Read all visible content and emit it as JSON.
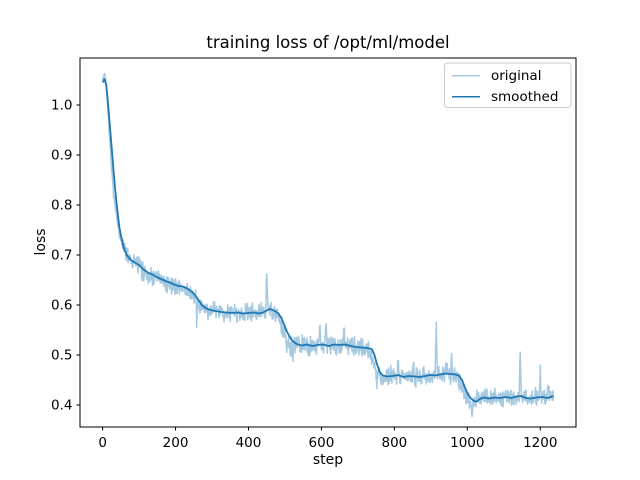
{
  "figure": {
    "title": "training loss of /opt/ml/model",
    "xlabel": "step",
    "ylabel": "loss",
    "background": "#ffffff"
  },
  "legend": {
    "items": [
      {
        "label": "original",
        "color": "#1f77b4",
        "opacity": 0.4
      },
      {
        "label": "smoothed",
        "color": "#1f77b4",
        "opacity": 1.0
      }
    ]
  },
  "axes": {
    "xlim": [
      -62,
      1298
    ],
    "ylim": [
      0.356,
      1.094
    ],
    "x_ticks": [
      0,
      200,
      400,
      600,
      800,
      1000,
      1200
    ],
    "y_ticks": [
      0.4,
      0.5,
      0.6,
      0.7,
      0.8,
      0.9,
      1.0
    ],
    "grid": false,
    "spine_color": "#000000"
  },
  "chart_data": {
    "type": "line",
    "title": "training loss of /opt/ml/model",
    "xlabel": "step",
    "ylabel": "loss",
    "x_range": [
      0,
      1236
    ],
    "legend_position": "upper right",
    "series": [
      {
        "name": "original",
        "color": "#1f77b4",
        "opacity": 0.4,
        "linewidth": 1.5
      },
      {
        "name": "smoothed",
        "color": "#1f77b4",
        "opacity": 1.0,
        "linewidth": 1.8
      }
    ],
    "smoothed_keypoints": [
      [
        0,
        1.045
      ],
      [
        5,
        1.052
      ],
      [
        10,
        1.04
      ],
      [
        14,
        1.01
      ],
      [
        18,
        0.975
      ],
      [
        22,
        0.94
      ],
      [
        26,
        0.905
      ],
      [
        30,
        0.868
      ],
      [
        34,
        0.835
      ],
      [
        38,
        0.805
      ],
      [
        42,
        0.78
      ],
      [
        46,
        0.755
      ],
      [
        52,
        0.733
      ],
      [
        58,
        0.715
      ],
      [
        66,
        0.7
      ],
      [
        76,
        0.691
      ],
      [
        88,
        0.685
      ],
      [
        100,
        0.68
      ],
      [
        112,
        0.671
      ],
      [
        124,
        0.665
      ],
      [
        136,
        0.661
      ],
      [
        148,
        0.656
      ],
      [
        160,
        0.652
      ],
      [
        172,
        0.648
      ],
      [
        184,
        0.645
      ],
      [
        196,
        0.641
      ],
      [
        208,
        0.638
      ],
      [
        220,
        0.637
      ],
      [
        232,
        0.633
      ],
      [
        242,
        0.628
      ],
      [
        252,
        0.621
      ],
      [
        262,
        0.611
      ],
      [
        272,
        0.6
      ],
      [
        282,
        0.594
      ],
      [
        295,
        0.59
      ],
      [
        310,
        0.588
      ],
      [
        325,
        0.586
      ],
      [
        340,
        0.585
      ],
      [
        355,
        0.584
      ],
      [
        370,
        0.585
      ],
      [
        385,
        0.583
      ],
      [
        400,
        0.584
      ],
      [
        415,
        0.585
      ],
      [
        428,
        0.583
      ],
      [
        440,
        0.585
      ],
      [
        450,
        0.589
      ],
      [
        458,
        0.592
      ],
      [
        466,
        0.59
      ],
      [
        474,
        0.587
      ],
      [
        482,
        0.583
      ],
      [
        490,
        0.574
      ],
      [
        498,
        0.56
      ],
      [
        506,
        0.546
      ],
      [
        514,
        0.535
      ],
      [
        522,
        0.527
      ],
      [
        532,
        0.522
      ],
      [
        545,
        0.519
      ],
      [
        560,
        0.521
      ],
      [
        575,
        0.518
      ],
      [
        590,
        0.52
      ],
      [
        605,
        0.521
      ],
      [
        620,
        0.518
      ],
      [
        635,
        0.521
      ],
      [
        650,
        0.52
      ],
      [
        665,
        0.521
      ],
      [
        680,
        0.518
      ],
      [
        695,
        0.516
      ],
      [
        710,
        0.515
      ],
      [
        725,
        0.514
      ],
      [
        738,
        0.512
      ],
      [
        745,
        0.501
      ],
      [
        752,
        0.482
      ],
      [
        760,
        0.466
      ],
      [
        768,
        0.459
      ],
      [
        780,
        0.457
      ],
      [
        795,
        0.458
      ],
      [
        810,
        0.46
      ],
      [
        825,
        0.456
      ],
      [
        840,
        0.458
      ],
      [
        855,
        0.457
      ],
      [
        870,
        0.456
      ],
      [
        885,
        0.458
      ],
      [
        898,
        0.46
      ],
      [
        912,
        0.459
      ],
      [
        926,
        0.461
      ],
      [
        940,
        0.463
      ],
      [
        954,
        0.462
      ],
      [
        968,
        0.461
      ],
      [
        978,
        0.458
      ],
      [
        986,
        0.449
      ],
      [
        994,
        0.434
      ],
      [
        1002,
        0.421
      ],
      [
        1010,
        0.413
      ],
      [
        1018,
        0.408
      ],
      [
        1026,
        0.407
      ],
      [
        1034,
        0.412
      ],
      [
        1045,
        0.415
      ],
      [
        1060,
        0.413
      ],
      [
        1075,
        0.415
      ],
      [
        1090,
        0.414
      ],
      [
        1105,
        0.416
      ],
      [
        1120,
        0.414
      ],
      [
        1135,
        0.417
      ],
      [
        1148,
        0.418
      ],
      [
        1160,
        0.414
      ],
      [
        1175,
        0.413
      ],
      [
        1190,
        0.415
      ],
      [
        1205,
        0.416
      ],
      [
        1220,
        0.414
      ],
      [
        1236,
        0.418
      ]
    ],
    "original_head_keypoints": [
      [
        0,
        1.05
      ],
      [
        3,
        1.058
      ],
      [
        6,
        1.063
      ],
      [
        9,
        1.05
      ],
      [
        12,
        1.02
      ],
      [
        15,
        0.985
      ],
      [
        18,
        0.95
      ],
      [
        21,
        0.915
      ],
      [
        24,
        0.882
      ],
      [
        27,
        0.852
      ],
      [
        30,
        0.825
      ],
      [
        34,
        0.8
      ],
      [
        38,
        0.778
      ],
      [
        42,
        0.76
      ],
      [
        46,
        0.745
      ],
      [
        50,
        0.734
      ],
      [
        56,
        0.72
      ],
      [
        62,
        0.71
      ],
      [
        70,
        0.699
      ],
      [
        80,
        0.691
      ],
      [
        90,
        0.684
      ],
      [
        100,
        0.679
      ],
      [
        106,
        0.675
      ]
    ],
    "noise": {
      "seed": 42,
      "amplitude": 0.022,
      "lead_steps": 9
    },
    "spikes": [
      [
        258,
        0.572
      ],
      [
        450,
        0.667
      ],
      [
        505,
        0.508
      ],
      [
        515,
        0.497
      ],
      [
        522,
        0.5
      ],
      [
        596,
        0.565
      ],
      [
        612,
        0.556
      ],
      [
        662,
        0.552
      ],
      [
        752,
        0.443
      ],
      [
        764,
        0.441
      ],
      [
        810,
        0.496
      ],
      [
        852,
        0.48
      ],
      [
        915,
        0.558
      ],
      [
        941,
        0.49
      ],
      [
        957,
        0.497
      ],
      [
        996,
        0.404
      ],
      [
        1013,
        0.396
      ],
      [
        1061,
        0.394
      ],
      [
        1145,
        0.507
      ],
      [
        1200,
        0.467
      ],
      [
        1222,
        0.437
      ]
    ]
  }
}
